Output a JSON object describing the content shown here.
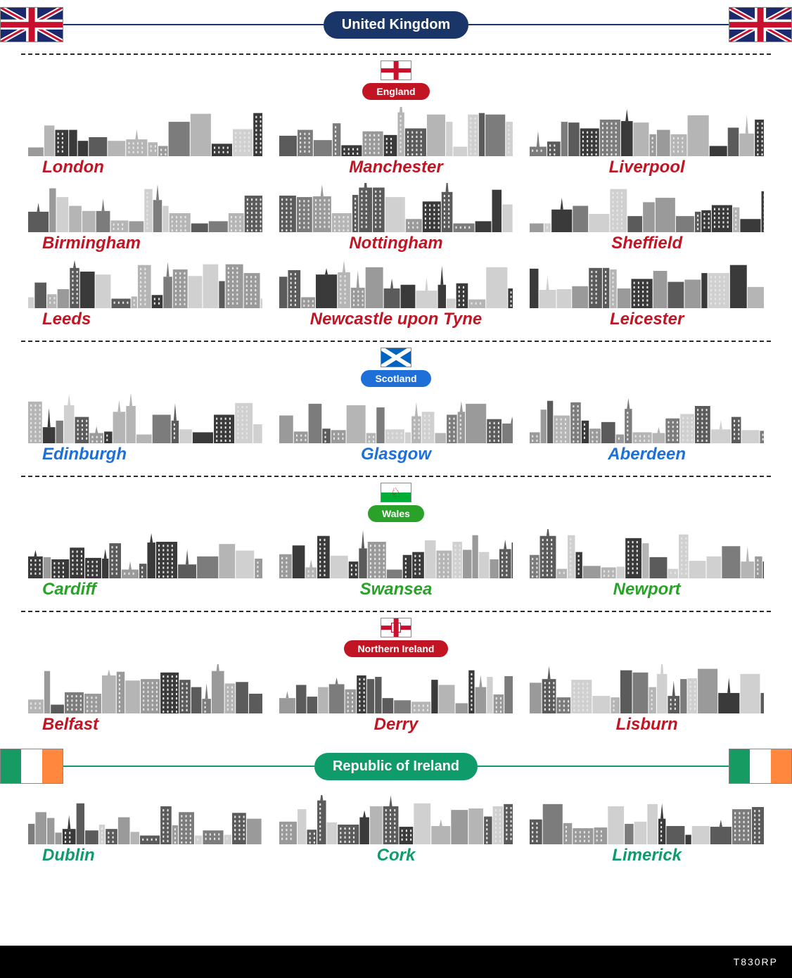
{
  "main": {
    "title": "United Kingdom",
    "pill_bg": "#1a3567",
    "line_color": "#1a3567"
  },
  "footer": {
    "code": "T830RP"
  },
  "colors": {
    "skyline_tones": [
      "#3a3a3a",
      "#5b5b5b",
      "#7c7c7c",
      "#9a9a9a",
      "#b5b5b5",
      "#d0d0d0"
    ],
    "background": "#ffffff",
    "dash": "#2a2a2a"
  },
  "city_label_fontsize": 24,
  "regions": [
    {
      "name": "England",
      "pill_bg": "#c21524",
      "label_color": "#c21524",
      "flag": "england",
      "cities": [
        "London",
        "Manchester",
        "Liverpool",
        "Birmingham",
        "Nottingham",
        "Sheffield",
        "Leeds",
        "Newcastle upon Tyne",
        "Leicester"
      ]
    },
    {
      "name": "Scotland",
      "pill_bg": "#1e6fd8",
      "label_color": "#1e6fd8",
      "flag": "scotland",
      "cities": [
        "Edinburgh",
        "Glasgow",
        "Aberdeen"
      ]
    },
    {
      "name": "Wales",
      "pill_bg": "#2aa22a",
      "label_color": "#2aa22a",
      "flag": "wales",
      "cities": [
        "Cardiff",
        "Swansea",
        "Newport"
      ]
    },
    {
      "name": "Northern Ireland",
      "pill_bg": "#c21524",
      "label_color": "#c21524",
      "flag": "nireland",
      "cities": [
        "Belfast",
        "Derry",
        "Lisburn"
      ]
    }
  ],
  "ireland": {
    "title": "Republic of Ireland",
    "pill_bg": "#109b6b",
    "line_color": "#109b6b",
    "label_color": "#109b6b",
    "flag_colors": [
      "#169b62",
      "#ffffff",
      "#ff883e"
    ],
    "cities": [
      "Dublin",
      "Cork",
      "Limerick"
    ]
  }
}
